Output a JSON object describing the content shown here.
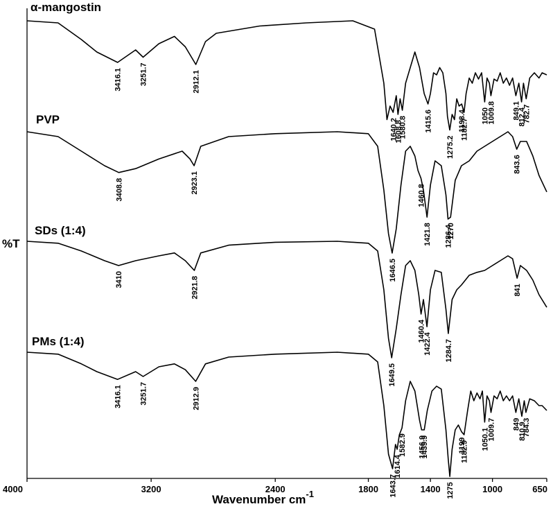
{
  "chart_data": {
    "type": "line",
    "title": "",
    "xlabel": "Wavenumber cm",
    "xlabel_superscript": "-1",
    "ylabel": "%T",
    "xlim": [
      4000,
      650
    ],
    "x_reversed": true,
    "xticks": [
      4000,
      3200,
      2400,
      1800,
      1400,
      1000,
      650
    ],
    "xtick_labels": [
      "4000",
      "3200",
      "2400",
      "1800",
      "1400",
      "1000",
      "650"
    ],
    "grid": false,
    "series": [
      {
        "name": "α-mangostin",
        "baseline": 0.0,
        "profile": [
          [
            4000,
            0.0
          ],
          [
            3800,
            0.02
          ],
          [
            3650,
            0.18
          ],
          [
            3550,
            0.3
          ],
          [
            3416.1,
            0.4
          ],
          [
            3300,
            0.28
          ],
          [
            3251.7,
            0.35
          ],
          [
            3150,
            0.22
          ],
          [
            3050,
            0.15
          ],
          [
            2980,
            0.25
          ],
          [
            2912.1,
            0.42
          ],
          [
            2850,
            0.2
          ],
          [
            2780,
            0.12
          ],
          [
            2500,
            0.05
          ],
          [
            2200,
            0.02
          ],
          [
            1900,
            0.0
          ],
          [
            1760,
            0.08
          ],
          [
            1700,
            0.6
          ],
          [
            1680,
            0.95
          ],
          [
            1660,
            0.82
          ],
          [
            1640.2,
            0.88
          ],
          [
            1620,
            0.72
          ],
          [
            1608.8,
            0.9
          ],
          [
            1595,
            0.75
          ],
          [
            1580.8,
            0.86
          ],
          [
            1560,
            0.6
          ],
          [
            1530,
            0.45
          ],
          [
            1500,
            0.3
          ],
          [
            1470,
            0.45
          ],
          [
            1440,
            0.7
          ],
          [
            1415.6,
            0.8
          ],
          [
            1400,
            0.7
          ],
          [
            1380,
            0.5
          ],
          [
            1360,
            0.52
          ],
          [
            1340,
            0.45
          ],
          [
            1320,
            0.5
          ],
          [
            1300,
            0.7
          ],
          [
            1290,
            0.92
          ],
          [
            1275.2,
            1.05
          ],
          [
            1260,
            0.9
          ],
          [
            1245,
            0.95
          ],
          [
            1230,
            0.75
          ],
          [
            1215,
            0.82
          ],
          [
            1198.4,
            0.8
          ],
          [
            1182.7,
            0.88
          ],
          [
            1170,
            0.7
          ],
          [
            1150,
            0.55
          ],
          [
            1130,
            0.6
          ],
          [
            1110,
            0.5
          ],
          [
            1090,
            0.56
          ],
          [
            1070,
            0.5
          ],
          [
            1050,
            0.78
          ],
          [
            1035,
            0.55
          ],
          [
            1020,
            0.6
          ],
          [
            1009.8,
            0.72
          ],
          [
            990,
            0.56
          ],
          [
            970,
            0.58
          ],
          [
            950,
            0.5
          ],
          [
            930,
            0.6
          ],
          [
            910,
            0.55
          ],
          [
            890,
            0.62
          ],
          [
            870,
            0.55
          ],
          [
            849.1,
            0.72
          ],
          [
            830,
            0.6
          ],
          [
            812.4,
            0.78
          ],
          [
            800,
            0.6
          ],
          [
            782.7,
            0.75
          ],
          [
            760,
            0.55
          ],
          [
            730,
            0.5
          ],
          [
            700,
            0.55
          ],
          [
            680,
            0.5
          ],
          [
            650,
            0.52
          ]
        ],
        "peaks": [
          {
            "x": 3416.1,
            "label": "3416.1"
          },
          {
            "x": 3251.7,
            "label": "3251.7"
          },
          {
            "x": 2912.1,
            "label": "2912.1"
          },
          {
            "x": 1640.2,
            "label": "1640.2"
          },
          {
            "x": 1608.8,
            "label": "1608.8"
          },
          {
            "x": 1580.8,
            "label": "1580.8"
          },
          {
            "x": 1415.6,
            "label": "1415.6"
          },
          {
            "x": 1275.2,
            "label": "1275.2"
          },
          {
            "x": 1198.4,
            "label": "1198.4"
          },
          {
            "x": 1182.7,
            "label": "1182.7"
          },
          {
            "x": 1050,
            "label": "1050"
          },
          {
            "x": 1009.8,
            "label": "1009.8"
          },
          {
            "x": 849.1,
            "label": "849.1"
          },
          {
            "x": 812.4,
            "label": "812.4"
          },
          {
            "x": 782.7,
            "label": "782.7"
          }
        ]
      },
      {
        "name": "PVP",
        "baseline": 0.0,
        "profile": [
          [
            4000,
            0.0
          ],
          [
            3800,
            0.05
          ],
          [
            3650,
            0.2
          ],
          [
            3500,
            0.35
          ],
          [
            3408.8,
            0.42
          ],
          [
            3300,
            0.38
          ],
          [
            3150,
            0.28
          ],
          [
            3000,
            0.2
          ],
          [
            2950,
            0.28
          ],
          [
            2923.1,
            0.35
          ],
          [
            2880,
            0.15
          ],
          [
            2700,
            0.05
          ],
          [
            2400,
            0.02
          ],
          [
            2000,
            0.0
          ],
          [
            1800,
            0.02
          ],
          [
            1740,
            0.15
          ],
          [
            1700,
            0.6
          ],
          [
            1670,
            1.05
          ],
          [
            1646.5,
            1.25
          ],
          [
            1620,
            1.0
          ],
          [
            1590,
            0.55
          ],
          [
            1560,
            0.2
          ],
          [
            1530,
            0.15
          ],
          [
            1500,
            0.25
          ],
          [
            1480,
            0.4
          ],
          [
            1460.8,
            0.48
          ],
          [
            1445,
            0.6
          ],
          [
            1421.8,
            0.88
          ],
          [
            1400,
            0.55
          ],
          [
            1370,
            0.3
          ],
          [
            1330,
            0.35
          ],
          [
            1300,
            0.65
          ],
          [
            1286.4,
            0.9
          ],
          [
            1270,
            0.88
          ],
          [
            1240,
            0.5
          ],
          [
            1200,
            0.35
          ],
          [
            1150,
            0.3
          ],
          [
            1100,
            0.2
          ],
          [
            1050,
            0.15
          ],
          [
            1000,
            0.1
          ],
          [
            950,
            0.05
          ],
          [
            900,
            0.0
          ],
          [
            870,
            0.05
          ],
          [
            843.6,
            0.18
          ],
          [
            820,
            0.1
          ],
          [
            780,
            0.1
          ],
          [
            740,
            0.25
          ],
          [
            700,
            0.45
          ],
          [
            650,
            0.62
          ]
        ],
        "peaks": [
          {
            "x": 3408.8,
            "label": "3408.8"
          },
          {
            "x": 2923.1,
            "label": "2923.1"
          },
          {
            "x": 1646.5,
            "label": "1646.5"
          },
          {
            "x": 1460.8,
            "label": "1460.8"
          },
          {
            "x": 1421.8,
            "label": "1421.8"
          },
          {
            "x": 1286.4,
            "label": "1286.4"
          },
          {
            "x": 1270,
            "label": "1270"
          },
          {
            "x": 843.6,
            "label": "843.6"
          }
        ]
      },
      {
        "name": "SDs (1:4)",
        "baseline": 0.0,
        "profile": [
          [
            4000,
            0.0
          ],
          [
            3800,
            0.02
          ],
          [
            3650,
            0.1
          ],
          [
            3500,
            0.2
          ],
          [
            3410,
            0.25
          ],
          [
            3300,
            0.2
          ],
          [
            3150,
            0.15
          ],
          [
            3050,
            0.12
          ],
          [
            2980,
            0.2
          ],
          [
            2921.8,
            0.3
          ],
          [
            2880,
            0.12
          ],
          [
            2700,
            0.04
          ],
          [
            2400,
            0.01
          ],
          [
            2000,
            0.0
          ],
          [
            1800,
            0.02
          ],
          [
            1740,
            0.1
          ],
          [
            1700,
            0.5
          ],
          [
            1670,
            1.0
          ],
          [
            1649.5,
            1.2
          ],
          [
            1620,
            0.9
          ],
          [
            1590,
            0.55
          ],
          [
            1560,
            0.25
          ],
          [
            1530,
            0.2
          ],
          [
            1500,
            0.3
          ],
          [
            1475,
            0.55
          ],
          [
            1460.4,
            0.75
          ],
          [
            1445,
            0.6
          ],
          [
            1422.4,
            0.88
          ],
          [
            1400,
            0.5
          ],
          [
            1370,
            0.3
          ],
          [
            1330,
            0.32
          ],
          [
            1300,
            0.7
          ],
          [
            1284.7,
            0.95
          ],
          [
            1260,
            0.6
          ],
          [
            1230,
            0.5
          ],
          [
            1200,
            0.45
          ],
          [
            1150,
            0.35
          ],
          [
            1100,
            0.32
          ],
          [
            1050,
            0.3
          ],
          [
            1000,
            0.25
          ],
          [
            950,
            0.2
          ],
          [
            900,
            0.15
          ],
          [
            870,
            0.18
          ],
          [
            841,
            0.38
          ],
          [
            820,
            0.25
          ],
          [
            780,
            0.3
          ],
          [
            740,
            0.4
          ],
          [
            700,
            0.55
          ],
          [
            650,
            0.68
          ]
        ],
        "peaks": [
          {
            "x": 3410,
            "label": "3410"
          },
          {
            "x": 2921.8,
            "label": "2921.8"
          },
          {
            "x": 1649.5,
            "label": "1649.5"
          },
          {
            "x": 1460.4,
            "label": "1460.4"
          },
          {
            "x": 1422.4,
            "label": "1422.4"
          },
          {
            "x": 1284.7,
            "label": "1284.7"
          },
          {
            "x": 841,
            "label": "841"
          }
        ]
      },
      {
        "name": "PMs (1:4)",
        "baseline": 0.0,
        "profile": [
          [
            4000,
            0.0
          ],
          [
            3800,
            0.02
          ],
          [
            3650,
            0.12
          ],
          [
            3550,
            0.2
          ],
          [
            3416.1,
            0.28
          ],
          [
            3300,
            0.2
          ],
          [
            3251.7,
            0.25
          ],
          [
            3150,
            0.15
          ],
          [
            3050,
            0.12
          ],
          [
            2980,
            0.18
          ],
          [
            2912.9,
            0.3
          ],
          [
            2850,
            0.12
          ],
          [
            2700,
            0.05
          ],
          [
            2400,
            0.02
          ],
          [
            2000,
            0.0
          ],
          [
            1800,
            0.02
          ],
          [
            1740,
            0.1
          ],
          [
            1700,
            0.55
          ],
          [
            1670,
            1.05
          ],
          [
            1643.7,
            1.2
          ],
          [
            1625,
            0.95
          ],
          [
            1614.4,
            1.0
          ],
          [
            1600,
            0.85
          ],
          [
            1582.9,
            0.78
          ],
          [
            1560,
            0.5
          ],
          [
            1530,
            0.3
          ],
          [
            1500,
            0.4
          ],
          [
            1470,
            0.7
          ],
          [
            1456.9,
            0.8
          ],
          [
            1439.9,
            0.8
          ],
          [
            1420,
            0.6
          ],
          [
            1390,
            0.4
          ],
          [
            1360,
            0.35
          ],
          [
            1330,
            0.38
          ],
          [
            1300,
            0.8
          ],
          [
            1285,
            1.1
          ],
          [
            1275,
            1.28
          ],
          [
            1260,
            1.0
          ],
          [
            1240,
            0.8
          ],
          [
            1220,
            0.75
          ],
          [
            1199,
            0.82
          ],
          [
            1182.9,
            0.85
          ],
          [
            1160,
            0.6
          ],
          [
            1140,
            0.4
          ],
          [
            1120,
            0.5
          ],
          [
            1100,
            0.42
          ],
          [
            1080,
            0.48
          ],
          [
            1065,
            0.4
          ],
          [
            1050.1,
            0.72
          ],
          [
            1035,
            0.45
          ],
          [
            1020,
            0.5
          ],
          [
            1009.7,
            0.62
          ],
          [
            990,
            0.45
          ],
          [
            970,
            0.48
          ],
          [
            950,
            0.4
          ],
          [
            930,
            0.5
          ],
          [
            910,
            0.45
          ],
          [
            890,
            0.5
          ],
          [
            870,
            0.45
          ],
          [
            849,
            0.62
          ],
          [
            830,
            0.48
          ],
          [
            810.9,
            0.66
          ],
          [
            795,
            0.5
          ],
          [
            784.3,
            0.62
          ],
          [
            760,
            0.48
          ],
          [
            730,
            0.5
          ],
          [
            700,
            0.55
          ],
          [
            680,
            0.55
          ],
          [
            650,
            0.6
          ]
        ],
        "peaks": [
          {
            "x": 3416.1,
            "label": "3416.1"
          },
          {
            "x": 3251.7,
            "label": "3251.7"
          },
          {
            "x": 2912.9,
            "label": "2912.9"
          },
          {
            "x": 1643.7,
            "label": "1643.7"
          },
          {
            "x": 1614.4,
            "label": "1614.4"
          },
          {
            "x": 1582.9,
            "label": "1582.9"
          },
          {
            "x": 1456.9,
            "label": "1456.9"
          },
          {
            "x": 1439.9,
            "label": "1439.9"
          },
          {
            "x": 1275,
            "label": "1275"
          },
          {
            "x": 1199,
            "label": "1199"
          },
          {
            "x": 1182.9,
            "label": "1182.9"
          },
          {
            "x": 1050.1,
            "label": "1050.1"
          },
          {
            "x": 1009.7,
            "label": "1009.7"
          },
          {
            "x": 849,
            "label": "849"
          },
          {
            "x": 810.9,
            "label": "810.9"
          },
          {
            "x": 784.3,
            "label": "784.3"
          }
        ]
      }
    ]
  }
}
